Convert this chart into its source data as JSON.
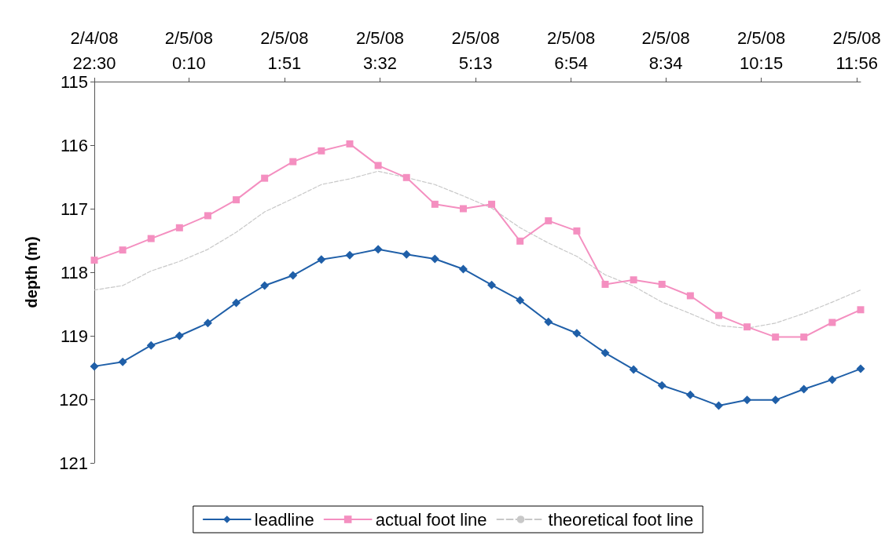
{
  "chart_data": {
    "type": "line",
    "ylabel": "depth (m)",
    "x": [
      "--02-04T22:30",
      "--02-04T23:00",
      "--02-04T23:30",
      "--02-05T00:00",
      "--02-05T00:30",
      "--02-05T01:00",
      "--02-05T01:30",
      "--02-05T02:00",
      "--02-05T02:30",
      "--02-05T03:00",
      "--02-05T03:30",
      "--02-05T04:00",
      "--02-05T04:30",
      "--02-05T05:00",
      "--02-05T05:30",
      "--02-05T06:00",
      "--02-05T06:30",
      "--02-05T07:00",
      "--02-05T07:30",
      "--02-05T08:00",
      "--02-05T08:30",
      "--02-05T09:00",
      "--02-05T09:30",
      "--02-05T10:00",
      "--02-05T10:30",
      "--02-05T11:00",
      "--02-05T11:30",
      "--02-05T12:00"
    ],
    "xlim": [
      "--02-04T22:30",
      "--02-05T12:00"
    ],
    "xticks": [
      {
        "value": "--02-04T22:30",
        "label": "2/4/08\n22:30"
      },
      {
        "value": "--02-05T00:10",
        "label": "2/5/08\n0:10"
      },
      {
        "value": "--02-05T01:51",
        "label": "2/5/08\n1:51"
      },
      {
        "value": "--02-05T03:32",
        "label": "2/5/08\n3:32"
      },
      {
        "value": "--02-05T05:13",
        "label": "2/5/08\n5:13"
      },
      {
        "value": "--02-05T06:54",
        "label": "2/5/08\n6:54"
      },
      {
        "value": "--02-05T08:34",
        "label": "2/5/08\n8:34"
      },
      {
        "value": "--02-05T10:15",
        "label": "2/5/08\n10:15"
      },
      {
        "value": "--02-05T11:56",
        "label": "2/5/08\n11:56"
      }
    ],
    "ylim": [
      121,
      115
    ],
    "yticks": [
      115,
      116,
      117,
      118,
      119,
      120,
      121
    ],
    "grid": false,
    "legend": "bottom",
    "series": [
      {
        "name": "leadline",
        "color": "#1f5fa8",
        "marker": "diamond",
        "line_style": "solid",
        "values": [
          119.48,
          119.41,
          119.15,
          119.0,
          118.8,
          118.48,
          118.21,
          118.05,
          117.8,
          117.73,
          117.64,
          117.72,
          117.79,
          117.95,
          118.2,
          118.44,
          118.78,
          118.96,
          119.27,
          119.53,
          119.78,
          119.93,
          120.1,
          120.01,
          120.01,
          119.84,
          119.69,
          119.52
        ]
      },
      {
        "name": "actual foot line",
        "color": "#f48fc0",
        "marker": "square",
        "line_style": "solid",
        "values": [
          117.81,
          117.65,
          117.47,
          117.3,
          117.11,
          116.86,
          116.52,
          116.26,
          116.09,
          115.98,
          116.32,
          116.51,
          116.93,
          117.0,
          116.93,
          117.51,
          117.19,
          117.35,
          118.19,
          118.12,
          118.19,
          118.37,
          118.68,
          118.86,
          119.02,
          119.02,
          118.79,
          118.59
        ]
      },
      {
        "name": "theoretical foot line",
        "color": "#c8c8c8",
        "marker": "none",
        "line_style": "dashed",
        "values": [
          118.28,
          118.21,
          117.98,
          117.83,
          117.64,
          117.37,
          117.05,
          116.84,
          116.62,
          116.53,
          116.41,
          116.51,
          116.62,
          116.8,
          116.99,
          117.3,
          117.54,
          117.75,
          118.04,
          118.22,
          118.47,
          118.65,
          118.84,
          118.88,
          118.8,
          118.65,
          118.47,
          118.28
        ]
      }
    ]
  }
}
